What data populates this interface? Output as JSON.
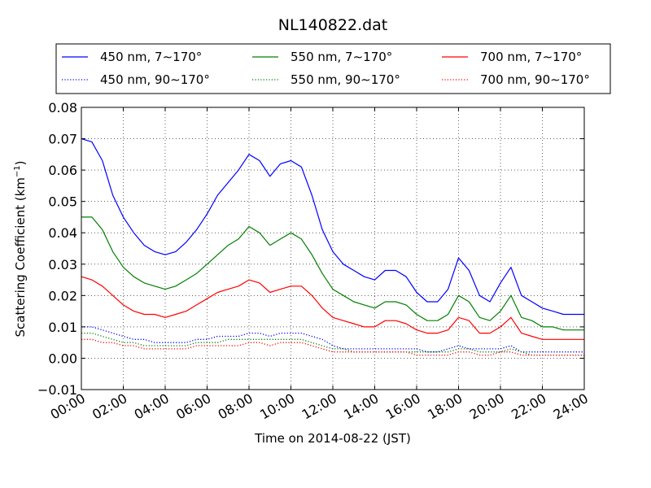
{
  "chart_data": {
    "type": "line",
    "title": "NL140822.dat",
    "xlabel": "Time on 2014-08-22 (JST)",
    "ylabel_main": "Scattering Coefficient (km",
    "ylabel_sup": "−1",
    "ylabel_close": ")",
    "xlim": [
      0,
      24
    ],
    "ylim": [
      -0.01,
      0.08
    ],
    "x_tick_values": [
      0,
      2,
      4,
      6,
      8,
      10,
      12,
      14,
      16,
      18,
      20,
      22,
      24
    ],
    "x_tick_labels": [
      "00:00",
      "02:00",
      "04:00",
      "06:00",
      "08:00",
      "10:00",
      "12:00",
      "14:00",
      "16:00",
      "18:00",
      "20:00",
      "22:00",
      "24:00"
    ],
    "y_tick_values": [
      -0.01,
      0.0,
      0.01,
      0.02,
      0.03,
      0.04,
      0.05,
      0.06,
      0.07,
      0.08
    ],
    "y_tick_labels": [
      "−0.01",
      "0.00",
      "0.01",
      "0.02",
      "0.03",
      "0.04",
      "0.05",
      "0.06",
      "0.07",
      "0.08"
    ],
    "grid": true,
    "legend_placement": "top-center",
    "x": [
      0,
      0.5,
      1,
      1.5,
      2,
      2.5,
      3,
      3.5,
      4,
      4.5,
      5,
      5.5,
      6,
      6.5,
      7,
      7.5,
      8,
      8.5,
      9,
      9.5,
      10,
      10.5,
      11,
      11.5,
      12,
      12.5,
      13,
      13.5,
      14,
      14.5,
      15,
      15.5,
      16,
      16.5,
      17,
      17.5,
      18,
      18.5,
      19,
      19.5,
      20,
      20.5,
      21,
      21.5,
      22,
      22.5,
      23,
      23.5,
      24
    ],
    "series": [
      {
        "name": "450 nm, 7∼170°",
        "color": "#0000ff",
        "style": "solid",
        "values": [
          0.07,
          0.069,
          0.063,
          0.052,
          0.045,
          0.04,
          0.036,
          0.034,
          0.033,
          0.034,
          0.037,
          0.041,
          0.046,
          0.052,
          0.056,
          0.06,
          0.065,
          0.063,
          0.058,
          0.062,
          0.063,
          0.061,
          0.052,
          0.041,
          0.034,
          0.03,
          0.028,
          0.026,
          0.025,
          0.028,
          0.028,
          0.026,
          0.021,
          0.018,
          0.018,
          0.022,
          0.032,
          0.028,
          0.02,
          0.018,
          0.024,
          0.029,
          0.02,
          0.018,
          0.016,
          0.015,
          0.014,
          0.014,
          0.014
        ]
      },
      {
        "name": "550 nm, 7∼170°",
        "color": "#008000",
        "style": "solid",
        "values": [
          0.045,
          0.045,
          0.041,
          0.034,
          0.029,
          0.026,
          0.024,
          0.023,
          0.022,
          0.023,
          0.025,
          0.027,
          0.03,
          0.033,
          0.036,
          0.038,
          0.042,
          0.04,
          0.036,
          0.038,
          0.04,
          0.038,
          0.033,
          0.027,
          0.022,
          0.02,
          0.018,
          0.017,
          0.016,
          0.018,
          0.018,
          0.017,
          0.014,
          0.012,
          0.012,
          0.014,
          0.02,
          0.018,
          0.013,
          0.012,
          0.015,
          0.02,
          0.013,
          0.012,
          0.01,
          0.01,
          0.009,
          0.009,
          0.009
        ]
      },
      {
        "name": "700 nm, 7∼170°",
        "color": "#ff0000",
        "style": "solid",
        "values": [
          0.026,
          0.025,
          0.023,
          0.02,
          0.017,
          0.015,
          0.014,
          0.014,
          0.013,
          0.014,
          0.015,
          0.017,
          0.019,
          0.021,
          0.022,
          0.023,
          0.025,
          0.024,
          0.021,
          0.022,
          0.023,
          0.023,
          0.02,
          0.016,
          0.013,
          0.012,
          0.011,
          0.01,
          0.01,
          0.012,
          0.012,
          0.011,
          0.009,
          0.008,
          0.008,
          0.009,
          0.013,
          0.012,
          0.008,
          0.008,
          0.01,
          0.013,
          0.008,
          0.007,
          0.006,
          0.006,
          0.006,
          0.006,
          0.006
        ]
      },
      {
        "name": "450 nm, 90∼170°",
        "color": "#0000ff",
        "style": "dotted",
        "values": [
          0.01,
          0.01,
          0.009,
          0.008,
          0.007,
          0.006,
          0.006,
          0.005,
          0.005,
          0.005,
          0.005,
          0.006,
          0.006,
          0.007,
          0.007,
          0.007,
          0.008,
          0.008,
          0.007,
          0.008,
          0.008,
          0.008,
          0.007,
          0.006,
          0.004,
          0.003,
          0.003,
          0.003,
          0.003,
          0.003,
          0.003,
          0.003,
          0.003,
          0.002,
          0.002,
          0.003,
          0.004,
          0.003,
          0.003,
          0.003,
          0.003,
          0.004,
          0.002,
          0.002,
          0.002,
          0.002,
          0.002,
          0.002,
          0.002
        ]
      },
      {
        "name": "550 nm, 90∼170°",
        "color": "#008000",
        "style": "dotted",
        "values": [
          0.008,
          0.008,
          0.007,
          0.006,
          0.005,
          0.005,
          0.004,
          0.004,
          0.004,
          0.004,
          0.004,
          0.005,
          0.005,
          0.005,
          0.006,
          0.006,
          0.006,
          0.006,
          0.006,
          0.006,
          0.006,
          0.006,
          0.005,
          0.004,
          0.003,
          0.003,
          0.002,
          0.002,
          0.002,
          0.002,
          0.002,
          0.002,
          0.002,
          0.002,
          0.002,
          0.002,
          0.003,
          0.003,
          0.002,
          0.002,
          0.002,
          0.003,
          0.002,
          0.001,
          0.001,
          0.001,
          0.001,
          0.001,
          0.001
        ]
      },
      {
        "name": "700 nm, 90∼170°",
        "color": "#ff0000",
        "style": "dotted",
        "values": [
          0.006,
          0.006,
          0.005,
          0.005,
          0.004,
          0.004,
          0.003,
          0.003,
          0.003,
          0.003,
          0.003,
          0.004,
          0.004,
          0.004,
          0.004,
          0.004,
          0.005,
          0.005,
          0.004,
          0.005,
          0.005,
          0.005,
          0.004,
          0.003,
          0.002,
          0.002,
          0.002,
          0.002,
          0.002,
          0.002,
          0.002,
          0.002,
          0.001,
          0.001,
          0.001,
          0.001,
          0.002,
          0.002,
          0.001,
          0.001,
          0.002,
          0.002,
          0.001,
          0.001,
          0.001,
          0.001,
          0.001,
          0.001,
          0.001
        ]
      }
    ]
  }
}
